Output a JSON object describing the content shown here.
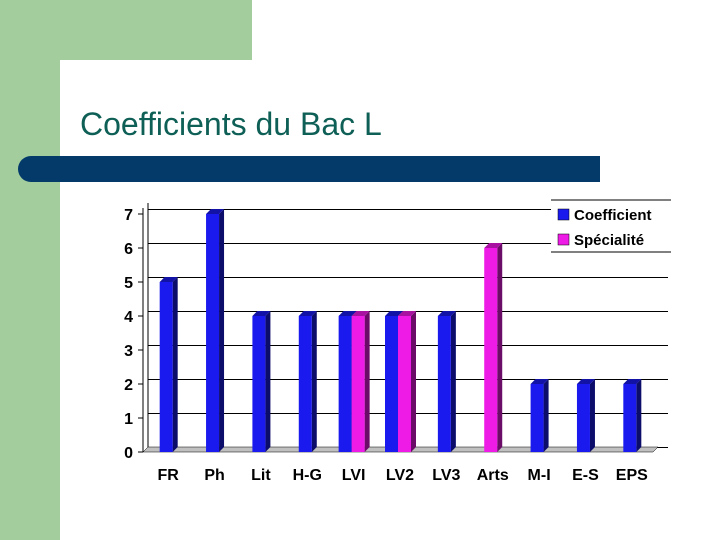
{
  "slide": {
    "title": "Coefficients du Bac L",
    "colors": {
      "accent_green": "#a3cd9d",
      "title_rule": "#033a6a",
      "title_text": "#0e5f56"
    }
  },
  "chart_data": {
    "type": "bar",
    "title": "",
    "xlabel": "",
    "ylabel": "",
    "categories": [
      "FR",
      "Ph",
      "Lit",
      "H-G",
      "LVI",
      "LV2",
      "LV3",
      "Arts",
      "M-I",
      "E-S",
      "EPS"
    ],
    "series": [
      {
        "name": "Coefficient",
        "color": "#1a1aee",
        "values": [
          5,
          7,
          4,
          4,
          4,
          4,
          4,
          null,
          2,
          2,
          2
        ]
      },
      {
        "name": "Spécialité",
        "color": "#ee1ae6",
        "values": [
          null,
          null,
          null,
          null,
          4,
          4,
          null,
          6,
          null,
          null,
          null
        ]
      }
    ],
    "ylim": [
      0,
      7
    ],
    "yticks": [
      "0",
      "1",
      "2",
      "3",
      "4",
      "5",
      "6",
      "7"
    ],
    "grid": true,
    "legend": "top-right"
  }
}
